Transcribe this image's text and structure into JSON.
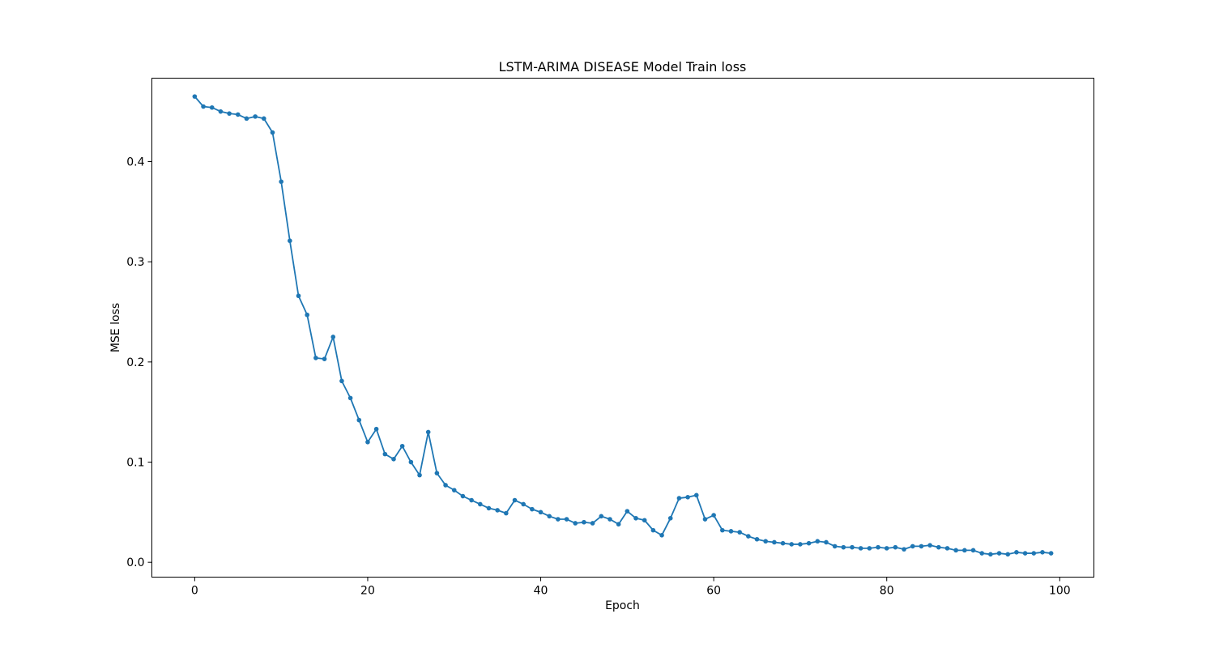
{
  "chart_data": {
    "type": "line",
    "title": "LSTM-ARIMA DISEASE Model Train loss",
    "xlabel": "Epoch",
    "ylabel": "MSE loss",
    "xlim": [
      -4.95,
      103.95
    ],
    "ylim": [
      -0.0148,
      0.4833
    ],
    "x_ticks": [
      0,
      20,
      40,
      60,
      80,
      100
    ],
    "y_ticks": [
      0.0,
      0.1,
      0.2,
      0.3,
      0.4
    ],
    "y_tick_labels": [
      "0.0",
      "0.1",
      "0.2",
      "0.3",
      "0.4"
    ],
    "grid": false,
    "legend": "none",
    "series_color": "#1f77b4",
    "series": [
      {
        "x": [
          0,
          1,
          2,
          3,
          4,
          5,
          6,
          7,
          8,
          9,
          10,
          11,
          12,
          13,
          14,
          15,
          16,
          17,
          18,
          19,
          20,
          21,
          22,
          23,
          24,
          25,
          26,
          27,
          28,
          29,
          30,
          31,
          32,
          33,
          34,
          35,
          36,
          37,
          38,
          39,
          40,
          41,
          42,
          43,
          44,
          45,
          46,
          47,
          48,
          49,
          50,
          51,
          52,
          53,
          54,
          55,
          56,
          57,
          58,
          59,
          60,
          61,
          62,
          63,
          64,
          65,
          66,
          67,
          68,
          69,
          70,
          71,
          72,
          73,
          74,
          75,
          76,
          77,
          78,
          79,
          80,
          81,
          82,
          83,
          84,
          85,
          86,
          87,
          88,
          89,
          90,
          91,
          92,
          93,
          94,
          95,
          96,
          97,
          98,
          99
        ],
        "values": [
          0.465,
          0.455,
          0.454,
          0.45,
          0.448,
          0.447,
          0.443,
          0.445,
          0.443,
          0.429,
          0.38,
          0.321,
          0.266,
          0.247,
          0.204,
          0.203,
          0.225,
          0.181,
          0.164,
          0.142,
          0.12,
          0.133,
          0.108,
          0.103,
          0.116,
          0.1,
          0.087,
          0.13,
          0.089,
          0.077,
          0.072,
          0.066,
          0.062,
          0.058,
          0.054,
          0.052,
          0.049,
          0.062,
          0.058,
          0.053,
          0.05,
          0.046,
          0.043,
          0.043,
          0.039,
          0.04,
          0.039,
          0.046,
          0.043,
          0.038,
          0.051,
          0.044,
          0.042,
          0.032,
          0.027,
          0.044,
          0.064,
          0.065,
          0.067,
          0.043,
          0.047,
          0.032,
          0.031,
          0.03,
          0.026,
          0.023,
          0.021,
          0.02,
          0.019,
          0.018,
          0.018,
          0.019,
          0.021,
          0.02,
          0.016,
          0.015,
          0.015,
          0.014,
          0.014,
          0.015,
          0.014,
          0.015,
          0.013,
          0.016,
          0.016,
          0.017,
          0.015,
          0.014,
          0.012,
          0.012,
          0.012,
          0.009,
          0.008,
          0.009,
          0.008,
          0.01,
          0.009,
          0.009,
          0.01,
          0.009
        ]
      }
    ]
  }
}
